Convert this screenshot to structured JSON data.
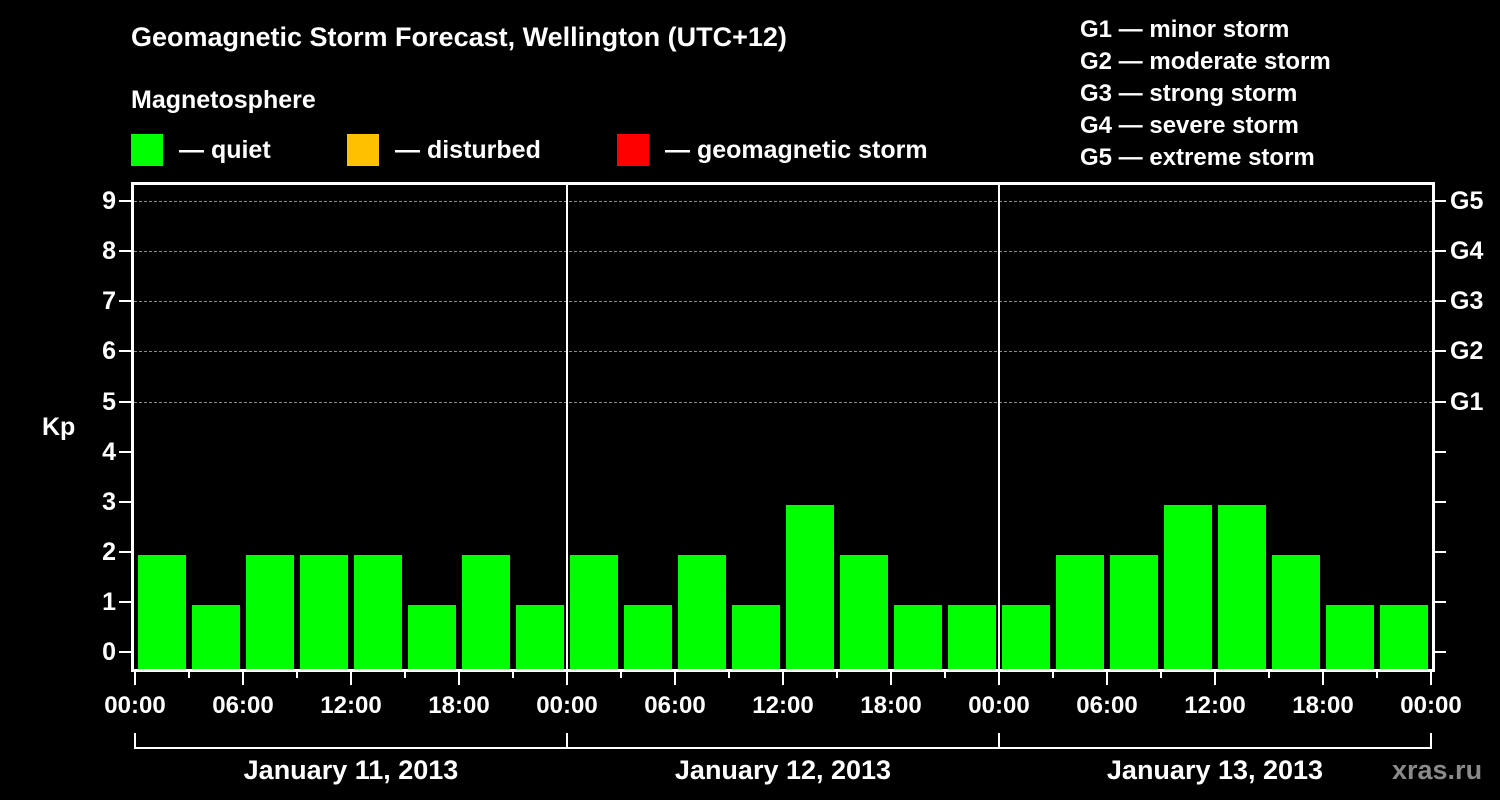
{
  "header": {
    "title": "Geomagnetic Storm Forecast, Wellington (UTC+12)",
    "subtitle": "Magnetosphere"
  },
  "legend": [
    {
      "label": "— quiet",
      "color": "#00ff00"
    },
    {
      "label": "— disturbed",
      "color": "#ffc000"
    },
    {
      "label": "— geomagnetic storm",
      "color": "#ff0000"
    }
  ],
  "g_scale_legend": [
    "G1 — minor storm",
    "G2 — moderate storm",
    "G3 — strong storm",
    "G4 — severe storm",
    "G5 — extreme storm"
  ],
  "axes": {
    "ylabel": "Kp",
    "yticks": [
      "0",
      "1",
      "2",
      "3",
      "4",
      "5",
      "6",
      "7",
      "8",
      "9"
    ],
    "right_ticks": [
      {
        "kp": 5,
        "label": "G1"
      },
      {
        "kp": 6,
        "label": "G2"
      },
      {
        "kp": 7,
        "label": "G3"
      },
      {
        "kp": 8,
        "label": "G4"
      },
      {
        "kp": 9,
        "label": "G5"
      }
    ],
    "xticks": [
      "00:00",
      "06:00",
      "12:00",
      "18:00",
      "00:00",
      "06:00",
      "12:00",
      "18:00",
      "00:00",
      "06:00",
      "12:00",
      "18:00",
      "00:00"
    ],
    "days": [
      "January 11, 2013",
      "January 12, 2013",
      "January 13, 2013"
    ]
  },
  "watermark": "xras.ru",
  "chart_data": {
    "type": "bar",
    "title": "Geomagnetic Storm Forecast, Wellington (UTC+12)",
    "subtitle": "Magnetosphere",
    "xlabel": "",
    "ylabel": "Kp",
    "ylim": [
      0,
      9
    ],
    "grid": "dashed horizontal lines at Kp 5–9",
    "interval_hours": 3,
    "categories": [
      "Jan 11 00:00",
      "Jan 11 03:00",
      "Jan 11 06:00",
      "Jan 11 09:00",
      "Jan 11 12:00",
      "Jan 11 15:00",
      "Jan 11 18:00",
      "Jan 11 21:00",
      "Jan 12 00:00",
      "Jan 12 03:00",
      "Jan 12 06:00",
      "Jan 12 09:00",
      "Jan 12 12:00",
      "Jan 12 15:00",
      "Jan 12 18:00",
      "Jan 12 21:00",
      "Jan 13 00:00",
      "Jan 13 03:00",
      "Jan 13 06:00",
      "Jan 13 09:00",
      "Jan 13 12:00",
      "Jan 13 15:00",
      "Jan 13 18:00",
      "Jan 13 21:00"
    ],
    "values": [
      2,
      1,
      2,
      2,
      2,
      1,
      2,
      1,
      2,
      1,
      2,
      1,
      3,
      2,
      1,
      1,
      1,
      2,
      2,
      3,
      3,
      2,
      1,
      1
    ],
    "status": [
      "quiet",
      "quiet",
      "quiet",
      "quiet",
      "quiet",
      "quiet",
      "quiet",
      "quiet",
      "quiet",
      "quiet",
      "quiet",
      "quiet",
      "quiet",
      "quiet",
      "quiet",
      "quiet",
      "quiet",
      "quiet",
      "quiet",
      "quiet",
      "quiet",
      "quiet",
      "quiet",
      "quiet"
    ],
    "status_colors": {
      "quiet": "#00ff00",
      "disturbed": "#ffc000",
      "storm": "#ff0000"
    },
    "right_axis": {
      "5": "G1",
      "6": "G2",
      "7": "G3",
      "8": "G4",
      "9": "G5"
    },
    "legend": [
      "quiet",
      "disturbed",
      "geomagnetic storm"
    ],
    "legend_position": "top"
  }
}
